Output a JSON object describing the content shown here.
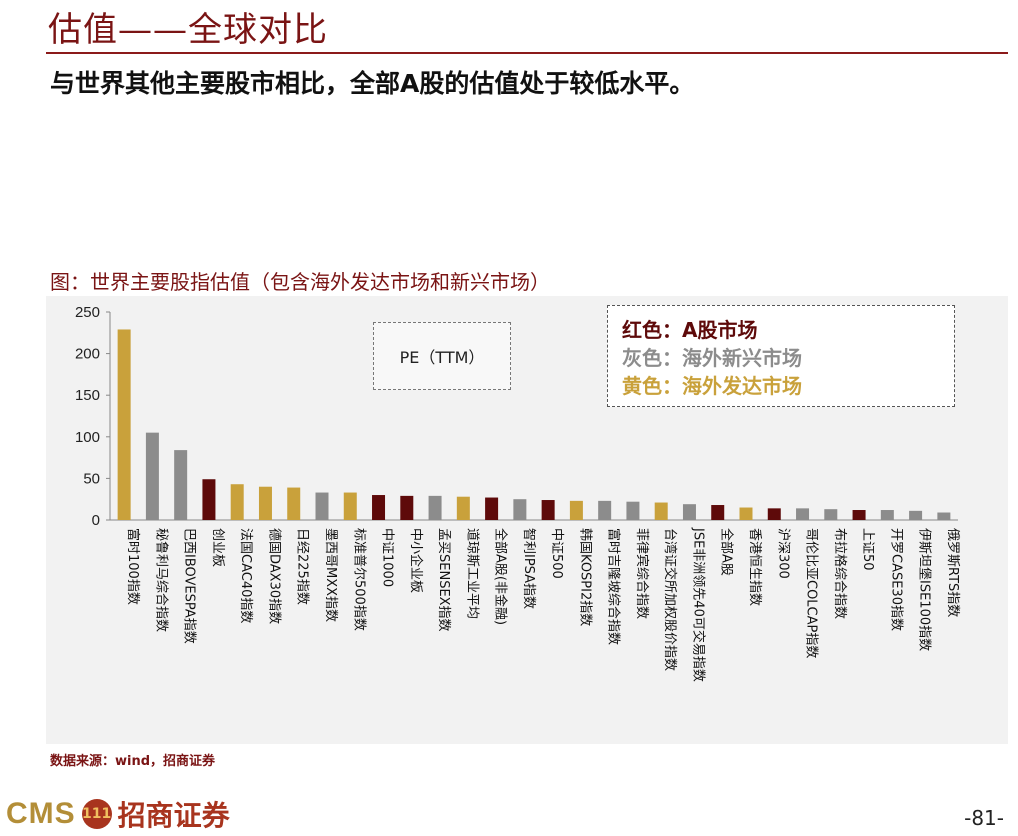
{
  "slide": {
    "title": "估值——全球对比",
    "subtitle": "与世界其他主要股市相比，全部A股的估值处于较低水平。",
    "figure_title": "图：世界主要股指估值（包含海外发达市场和新兴市场）",
    "source": "数据来源：wind，招商证券",
    "page_number": "-81-",
    "logo_text": "CMS",
    "logo_emblem": "111",
    "logo_name": "招商证券"
  },
  "legend": {
    "items": [
      {
        "label": "红色：A股市场",
        "color": "#5e0a0a"
      },
      {
        "label": "灰色：海外新兴市场",
        "color": "#8c8c8c"
      },
      {
        "label": "黄色：海外发达市场",
        "color": "#c9a13b"
      }
    ]
  },
  "colors": {
    "red": "#5e0a0a",
    "gray": "#8c8c8c",
    "yellow": "#c9a13b",
    "title": "#7a1414"
  },
  "chart_data": {
    "type": "bar",
    "annotation": "PE（TTM）",
    "ylim": [
      0,
      250
    ],
    "yticks": [
      0,
      50,
      100,
      150,
      200,
      250
    ],
    "grid": false,
    "legend_position": "top-right",
    "categories": [
      "富时100指数",
      "秘鲁利马综合指数",
      "巴西IBOVESPA指数",
      "创业板",
      "法国CAC40指数",
      "德国DAX30指数",
      "日经225指数",
      "墨西哥MXX指数",
      "标准普尔500指数",
      "中证1000",
      "中小企业板",
      "孟买SENSEX指数",
      "道琼斯工业平均",
      "全部A股(非金融)",
      "智利IPSA指数",
      "中证500",
      "韩国KOSPI2指数",
      "富时吉隆坡综合指数",
      "菲律宾综合指数",
      "台湾证交所加权股价指数",
      "JSE非洲领先40可交易指数",
      "全部A股",
      "香港恒生指数",
      "沪深300",
      "哥伦比亚COLCAP指数",
      "布拉格综合指数",
      "上证50",
      "开罗CASE30指数",
      "伊斯坦堡ISE100指数",
      "俄罗斯RTS指数"
    ],
    "values": [
      229,
      105,
      84,
      49,
      43,
      40,
      39,
      33,
      33,
      30,
      29,
      29,
      28,
      27,
      25,
      24,
      23,
      23,
      22,
      21,
      19,
      18,
      15,
      14,
      14,
      13,
      12,
      12,
      11,
      9
    ],
    "groups": [
      "yellow",
      "gray",
      "gray",
      "red",
      "yellow",
      "yellow",
      "yellow",
      "gray",
      "yellow",
      "red",
      "red",
      "gray",
      "yellow",
      "red",
      "gray",
      "red",
      "yellow",
      "gray",
      "gray",
      "yellow",
      "gray",
      "red",
      "yellow",
      "red",
      "gray",
      "gray",
      "red",
      "gray",
      "gray",
      "gray"
    ]
  }
}
